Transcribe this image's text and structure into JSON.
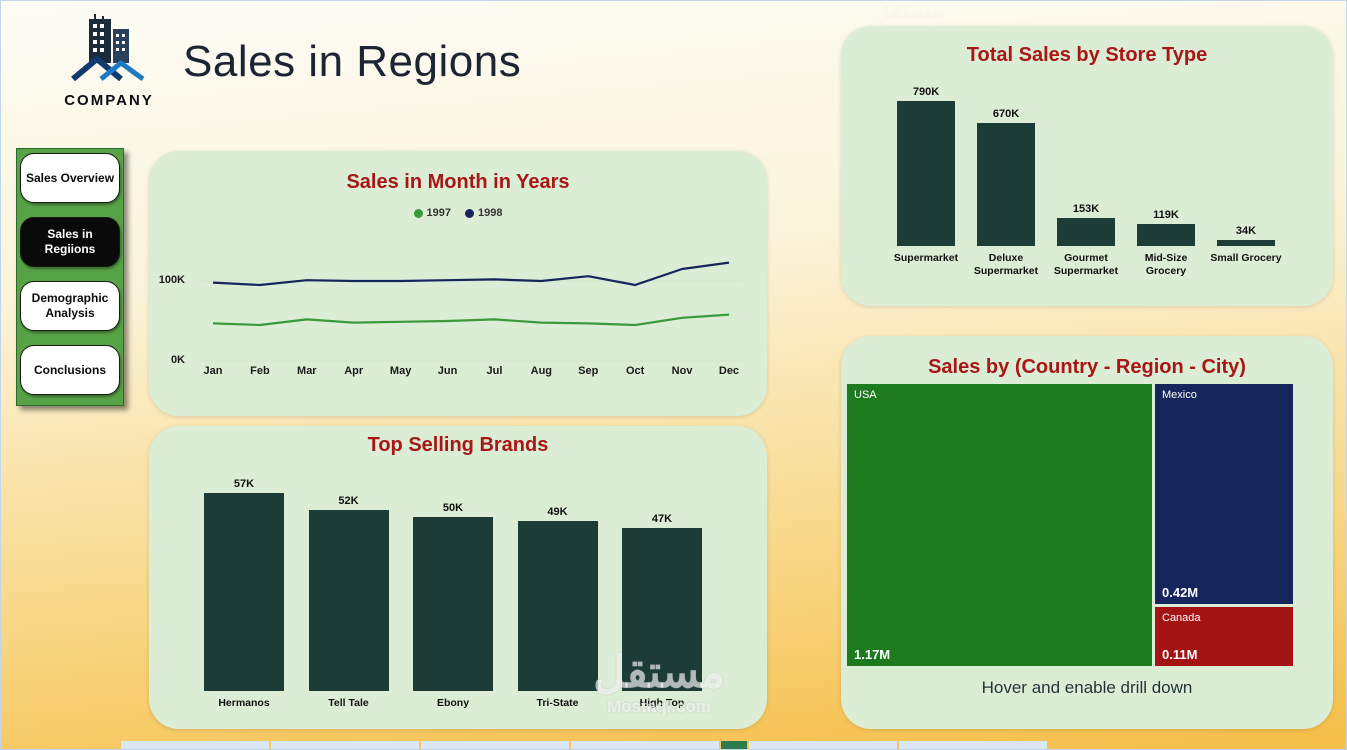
{
  "header": {
    "company": "COMPANY",
    "title": "Sales in Regions"
  },
  "sidebar": {
    "items": [
      {
        "label": "Sales Overview"
      },
      {
        "label": "Sales in Regiions"
      },
      {
        "label": "Demographic Analysis"
      },
      {
        "label": "Conclusions"
      }
    ],
    "active_index": 1
  },
  "colors": {
    "panel_bg": "#dcedd6",
    "title_red": "#a81616",
    "bar_teal": "#1d3c37",
    "line_1997": "#3a9a3a",
    "line_1998": "#16255c",
    "usa_green": "#1d7a1f",
    "mexico_navy": "#16255c",
    "canada_red": "#a31313"
  },
  "chart_data": [
    {
      "id": "monthly_sales",
      "type": "line",
      "title": "Sales in Month in Years",
      "categories": [
        "Jan",
        "Feb",
        "Mar",
        "Apr",
        "May",
        "Jun",
        "Jul",
        "Aug",
        "Sep",
        "Oct",
        "Nov",
        "Dec"
      ],
      "series": [
        {
          "name": "1997",
          "color": "#3a9a3a",
          "values": [
            47,
            45,
            52,
            48,
            49,
            50,
            52,
            48,
            47,
            45,
            54,
            58
          ]
        },
        {
          "name": "1998",
          "color": "#16255c",
          "values": [
            98,
            95,
            101,
            100,
            100,
            101,
            102,
            100,
            106,
            95,
            115,
            123
          ]
        }
      ],
      "unit": "K",
      "y_ticks": [
        "100K",
        "0K"
      ],
      "ylim": [
        0,
        150
      ],
      "grid": false,
      "legend_position": "top"
    },
    {
      "id": "store_type",
      "type": "bar",
      "title": "Total Sales by Store Type",
      "categories": [
        "Supermarket",
        "Deluxe Supermarket",
        "Gourmet Supermarket",
        "Mid-Size Grocery",
        "Small Grocery"
      ],
      "values": [
        790,
        670,
        153,
        119,
        34
      ],
      "value_labels": [
        "790K",
        "670K",
        "153K",
        "119K",
        "34K"
      ],
      "ylim": [
        0,
        790
      ]
    },
    {
      "id": "top_brands",
      "type": "bar",
      "title": "Top Selling Brands",
      "categories": [
        "Hermanos",
        "Tell Tale",
        "Ebony",
        "Tri-State",
        "High Top"
      ],
      "values": [
        57,
        52,
        50,
        49,
        47
      ],
      "value_labels": [
        "57K",
        "52K",
        "50K",
        "49K",
        "47K"
      ],
      "ylim": [
        0,
        57
      ]
    },
    {
      "id": "sales_by_geo",
      "type": "treemap",
      "title": "Sales by (Country - Region - City)",
      "nodes": [
        {
          "name": "USA",
          "value": 1.17,
          "value_label": "1.17M",
          "color": "#1d7a1f"
        },
        {
          "name": "Mexico",
          "value": 0.42,
          "value_label": "0.42M",
          "color": "#16255c"
        },
        {
          "name": "Canada",
          "value": 0.11,
          "value_label": "0.11M",
          "color": "#a31313"
        }
      ],
      "footer": "Hover and enable drill down"
    }
  ],
  "watermark": {
    "line1": "مستقل",
    "line2": "Mostaql.com"
  }
}
